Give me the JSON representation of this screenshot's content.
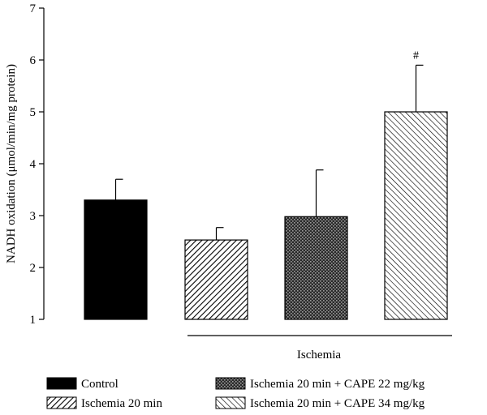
{
  "chart_data": {
    "type": "bar",
    "title": "",
    "ylabel": "NADH oxidation (μmol/min/mg protein)",
    "ylim": [
      1,
      7
    ],
    "yticks": [
      1,
      2,
      3,
      4,
      5,
      6,
      7
    ],
    "categories": [
      "Control",
      "Ischemia 20 min",
      "Ischemia 20 min + CAPE 22 mg/kg",
      "Ischemia 20 min + CAPE 34 mg/kg"
    ],
    "values": [
      3.3,
      2.53,
      2.98,
      5.0
    ],
    "errors": [
      0.4,
      0.24,
      0.9,
      0.9
    ],
    "fills": [
      "solid",
      "diagonal-dense",
      "crosshatch",
      "diagonal-back"
    ],
    "annotations": [
      {
        "bar": 3,
        "text": "#"
      }
    ],
    "group_bracket": {
      "label": "Ischemia",
      "from": 1,
      "to": 3
    },
    "legend": {
      "position": "bottom",
      "entries": [
        "Control",
        "Ischemia 20 min",
        "Ischemia 20 min + CAPE 22 mg/kg",
        "Ischemia 20 min + CAPE 34 mg/kg"
      ]
    }
  }
}
